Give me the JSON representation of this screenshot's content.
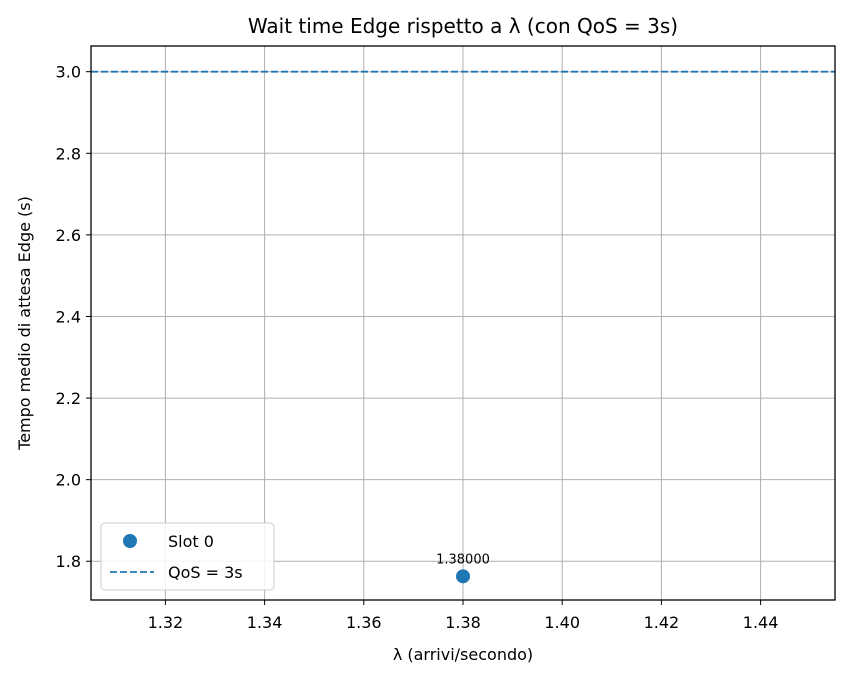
{
  "chart_data": {
    "type": "scatter",
    "title": "Wait time Edge rispetto a λ (con QoS = 3s)",
    "xlabel": "λ (arrivi/secondo)",
    "ylabel": "Tempo medio di attesa Edge (s)",
    "xlim": [
      1.305,
      1.455
    ],
    "ylim": [
      1.705,
      3.063
    ],
    "xticks": [
      1.32,
      1.34,
      1.36,
      1.38,
      1.4,
      1.42,
      1.44
    ],
    "xtick_labels": [
      "1.32",
      "1.34",
      "1.36",
      "1.38",
      "1.40",
      "1.42",
      "1.44"
    ],
    "yticks": [
      1.8,
      2.0,
      2.2,
      2.4,
      2.6,
      2.8,
      3.0
    ],
    "ytick_labels": [
      "1.8",
      "2.0",
      "2.2",
      "2.4",
      "2.6",
      "2.8",
      "3.0"
    ],
    "grid": true,
    "legend_position": "lower-left",
    "series": [
      {
        "name": "Slot 0",
        "kind": "marker",
        "color": "#1f77b4",
        "points": [
          {
            "x": 1.38,
            "y": 1.763,
            "label": "1.38000"
          }
        ]
      }
    ],
    "reference_lines": [
      {
        "name": "QoS = 3s",
        "y": 3.0,
        "style": "dashed",
        "color": "#1f77b4"
      }
    ]
  }
}
